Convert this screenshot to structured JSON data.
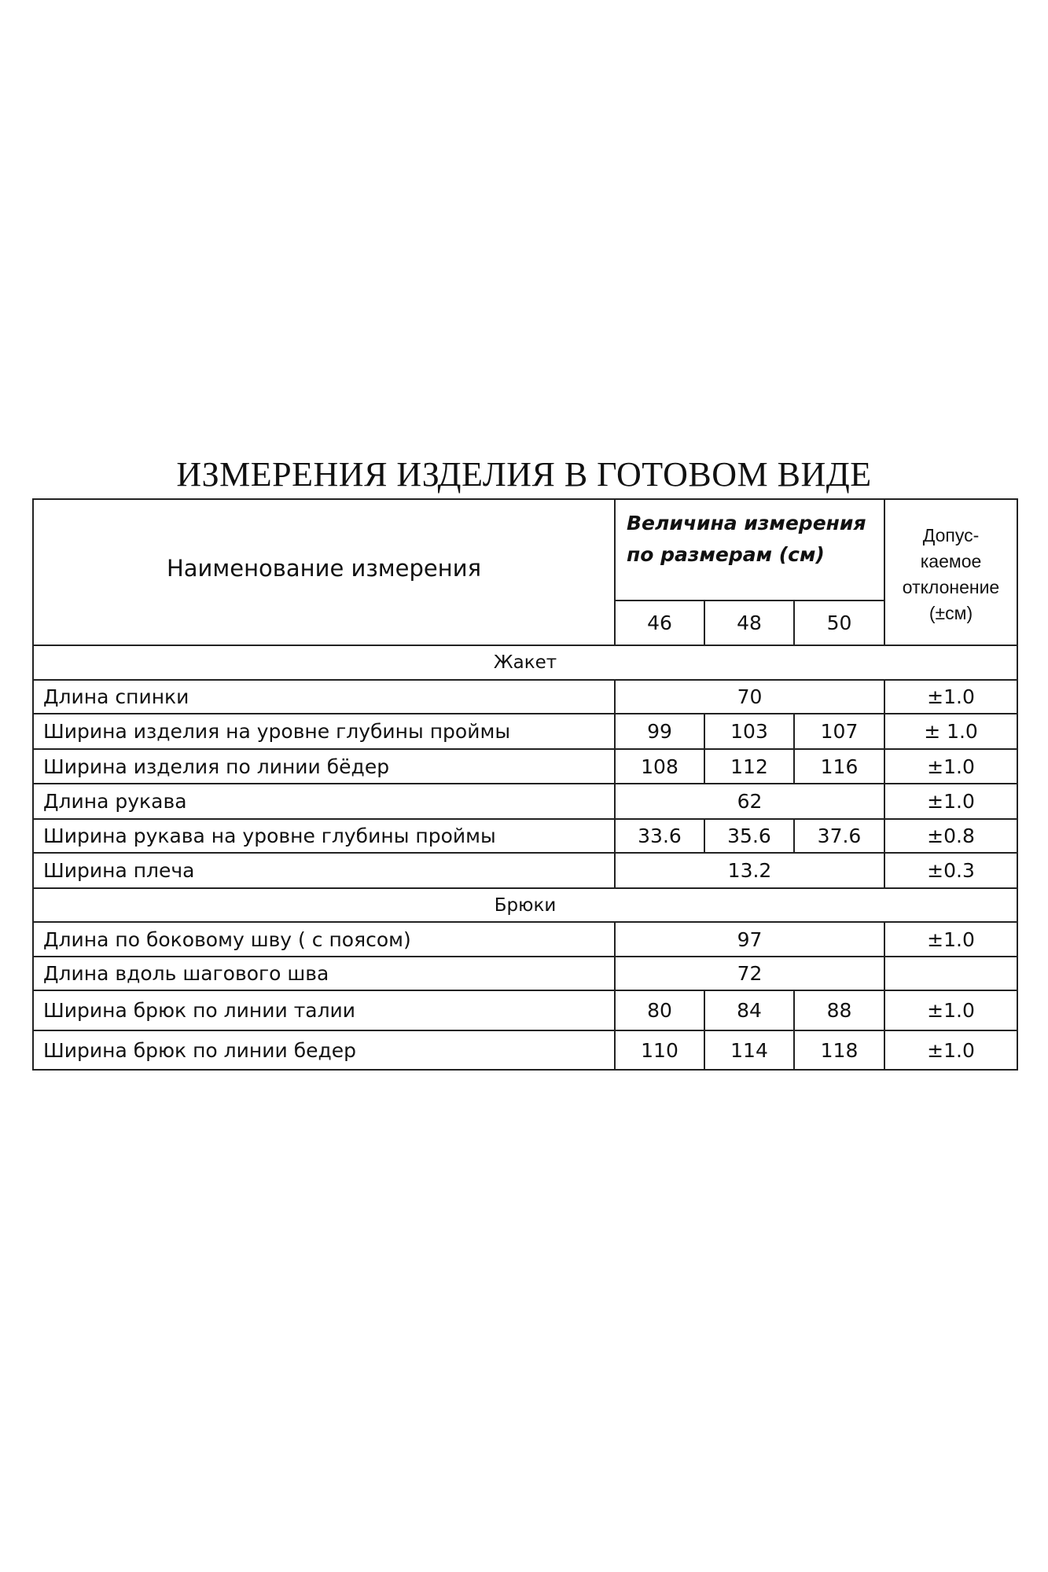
{
  "title": "ИЗМЕРЕНИЯ ИЗДЕЛИЯ В ГОТОВОМ ВИДЕ",
  "header": {
    "name": "Наименование измерения",
    "size_group_line1": "Величина измерения",
    "size_group_line2": "по размерам (см)",
    "tolerance_lines": [
      "Допус-",
      "каемое",
      "отклонение",
      "(±см)"
    ],
    "sizes": [
      "46",
      "48",
      "50"
    ]
  },
  "rows": [
    {
      "section": "Жакет"
    },
    {
      "name": "Длина спинки",
      "merged": "70",
      "tol": "±1.0"
    },
    {
      "name": "Ширина изделия на уровне глубины проймы",
      "values": [
        "99",
        "103",
        "107"
      ],
      "tol": "± 1.0"
    },
    {
      "name": "Ширина изделия по линии бёдер",
      "values": [
        "108",
        "112",
        "116"
      ],
      "tol": "±1.0"
    },
    {
      "name": "Длина рукава",
      "merged": "62",
      "tol": "±1.0"
    },
    {
      "name": "Ширина рукава на уровне глубины проймы",
      "values": [
        "33.6",
        "35.6",
        "37.6"
      ],
      "tol": "±0.8"
    },
    {
      "name": "Ширина плеча",
      "merged": "13.2",
      "tol": "±0.3"
    },
    {
      "section": "Брюки"
    },
    {
      "name": "Длина по боковому шву ( с поясом)",
      "merged": "97",
      "tol": "±1.0"
    },
    {
      "name": "Длина вдоль шагового шва",
      "merged": "72",
      "tol": ""
    },
    {
      "name": "Ширина брюк по линии талии",
      "values": [
        "80",
        "84",
        "88"
      ],
      "tol": "±1.0"
    },
    {
      "name": "Ширина брюк по линии бедер",
      "values": [
        "110",
        "114",
        "118"
      ],
      "tol": "±1.0"
    }
  ]
}
